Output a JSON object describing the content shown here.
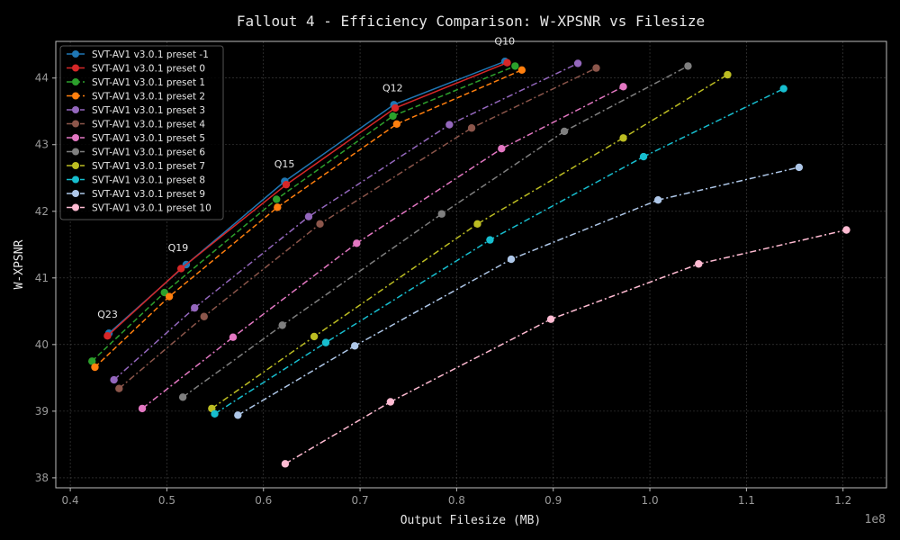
{
  "chart_data": {
    "type": "line",
    "title": "Fallout 4 - Efficiency Comparison: W-XPSNR vs Filesize",
    "xlabel": "Output Filesize (MB)",
    "ylabel": "W-XPSNR",
    "x_scale_label": "1e8",
    "xlim": [
      0.385,
      1.245
    ],
    "ylim": [
      37.85,
      44.55
    ],
    "xticks": [
      "0.4",
      "0.5",
      "0.6",
      "0.7",
      "0.8",
      "0.9",
      "1.0",
      "1.1",
      "1.2"
    ],
    "yticks": [
      "38",
      "39",
      "40",
      "41",
      "42",
      "43",
      "44"
    ],
    "grid": true,
    "legend_position": "top-left",
    "annotations": [
      {
        "text": "Q10",
        "x": 0.8497,
        "y": 44.5
      },
      {
        "text": "Q12",
        "x": 0.7338,
        "y": 43.8
      },
      {
        "text": "Q15",
        "x": 0.6217,
        "y": 42.66
      },
      {
        "text": "Q19",
        "x": 0.5117,
        "y": 41.4
      },
      {
        "text": "Q23",
        "x": 0.4386,
        "y": 40.4
      }
    ],
    "series": [
      {
        "name": "SVT-AV1 v3.0.1 preset -1",
        "color": "#1f77b4",
        "dash": "solid",
        "x": [
          0.44,
          0.52,
          0.622,
          0.735,
          0.85
        ],
        "y": [
          40.17,
          41.2,
          42.45,
          43.6,
          44.25
        ]
      },
      {
        "name": "SVT-AV1 v3.0.1 preset 0",
        "color": "#d62728",
        "dash": "solid",
        "x": [
          0.4385,
          0.5147,
          0.6235,
          0.7364,
          0.8523
        ],
        "y": [
          40.13,
          41.14,
          42.4,
          43.55,
          44.23
        ]
      },
      {
        "name": "SVT-AV1 v3.0.1 preset 1",
        "color": "#2ca02c",
        "dash": "dash",
        "x": [
          0.4225,
          0.4975,
          0.6135,
          0.734,
          0.8605
        ],
        "y": [
          39.75,
          40.78,
          42.18,
          43.43,
          44.18
        ]
      },
      {
        "name": "SVT-AV1 v3.0.1 preset 2",
        "color": "#ff7f0e",
        "dash": "dash",
        "x": [
          0.4255,
          0.5025,
          0.6145,
          0.738,
          0.8675
        ],
        "y": [
          39.66,
          40.72,
          42.06,
          43.31,
          44.12
        ]
      },
      {
        "name": "SVT-AV1 v3.0.1 preset 3",
        "color": "#9467bd",
        "dash": "dashdot",
        "x": [
          0.4452,
          0.5287,
          0.6468,
          0.7925,
          0.9255
        ],
        "y": [
          39.47,
          40.55,
          41.92,
          43.3,
          44.22
        ]
      },
      {
        "name": "SVT-AV1 v3.0.1 preset 4",
        "color": "#8c564b",
        "dash": "dashdot",
        "x": [
          0.4505,
          0.5385,
          0.6585,
          0.8155,
          0.9445
        ],
        "y": [
          39.34,
          40.42,
          41.81,
          43.25,
          44.15
        ]
      },
      {
        "name": "SVT-AV1 v3.0.1 preset 5",
        "color": "#e377c2",
        "dash": "dashdot",
        "x": [
          0.4745,
          0.5685,
          0.6965,
          0.8465,
          0.9725
        ],
        "y": [
          39.04,
          40.11,
          41.52,
          42.94,
          43.87
        ]
      },
      {
        "name": "SVT-AV1 v3.0.1 preset 6",
        "color": "#7f7f7f",
        "dash": "dashdot",
        "x": [
          0.5165,
          0.6195,
          0.7845,
          0.9115,
          1.0395
        ],
        "y": [
          39.21,
          40.29,
          41.96,
          43.2,
          44.18
        ]
      },
      {
        "name": "SVT-AV1 v3.0.1 preset 7",
        "color": "#bcbd22",
        "dash": "dashdot",
        "x": [
          0.5465,
          0.6525,
          0.8215,
          0.9725,
          1.0805
        ],
        "y": [
          39.04,
          40.12,
          41.81,
          43.1,
          44.05
        ]
      },
      {
        "name": "SVT-AV1 v3.0.1 preset 8",
        "color": "#17becf",
        "dash": "dashdot",
        "x": [
          0.5495,
          0.6645,
          0.8345,
          0.9935,
          1.1385
        ],
        "y": [
          38.96,
          40.03,
          41.57,
          42.82,
          43.84
        ]
      },
      {
        "name": "SVT-AV1 v3.0.1 preset 9",
        "color": "#aec7e8",
        "dash": "dashdot",
        "x": [
          0.5735,
          0.6945,
          0.8565,
          1.0085,
          1.1545
        ],
        "y": [
          38.94,
          39.98,
          41.28,
          42.17,
          42.66
        ]
      },
      {
        "name": "SVT-AV1 v3.0.1 preset 10",
        "color": "#ffbbd2",
        "dash": "dashdot",
        "x": [
          0.6225,
          0.7315,
          0.8975,
          1.0505,
          1.2035
        ],
        "y": [
          38.21,
          39.14,
          40.38,
          41.21,
          41.72
        ]
      }
    ]
  }
}
